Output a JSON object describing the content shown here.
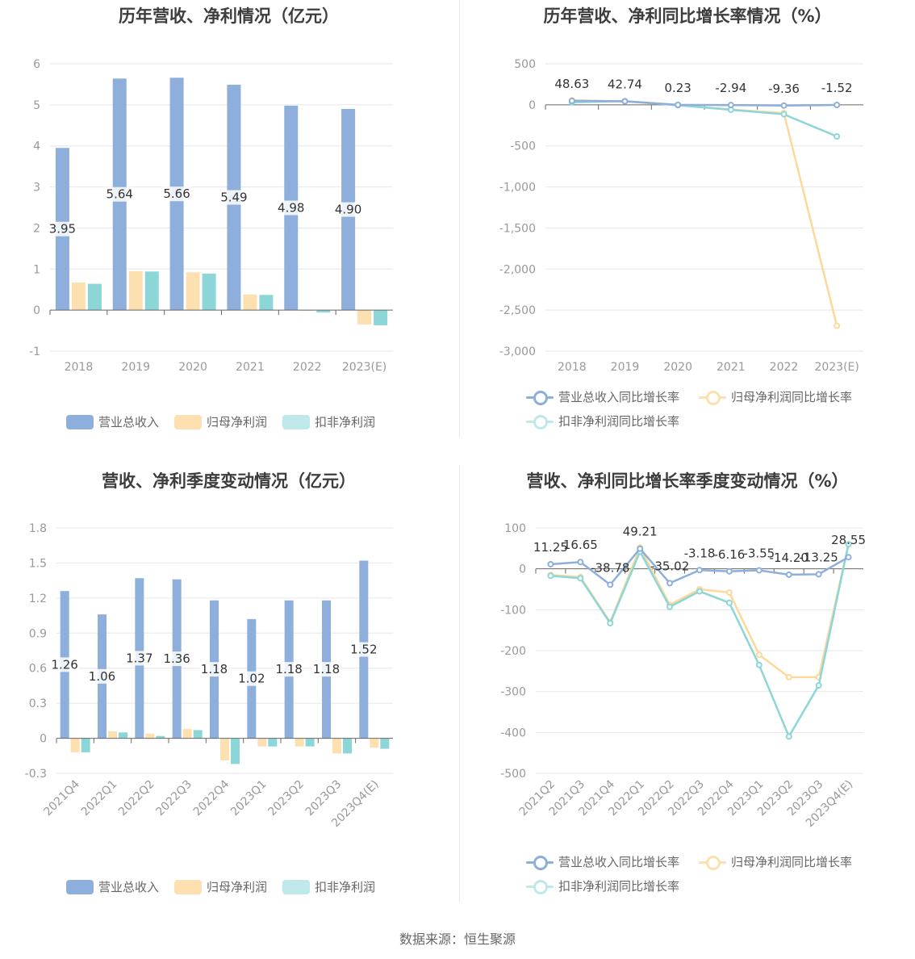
{
  "source_text": "数据来源：恒生聚源",
  "colors": {
    "revenue": "#8eaedc",
    "net": "#fde0b0",
    "deduct": "#8dd6d8",
    "grid": "#e6e6ee",
    "axis": "#666666",
    "text": "#999999"
  },
  "charts": [
    {
      "title": "历年营收、净利情况（亿元）",
      "legend": [
        "营业总收入",
        "归母净利润",
        "扣非净利润"
      ]
    },
    {
      "title": "历年营收、净利同比增长率情况（%）",
      "legend": [
        "营业总收入同比增长率",
        "归母净利润同比增长率",
        "扣非净利润同比增长率"
      ]
    },
    {
      "title": "营收、净利季度变动情况（亿元）",
      "legend": [
        "营业总收入",
        "归母净利润",
        "扣非净利润"
      ]
    },
    {
      "title": "营收、净利同比增长率季度变动情况（%）",
      "legend": [
        "营业总收入同比增长率",
        "归母净利润同比增长率",
        "扣非净利润同比增长率"
      ]
    }
  ],
  "chart_data": [
    {
      "type": "bar",
      "title": "历年营收、净利情况（亿元）",
      "categories": [
        "2018",
        "2019",
        "2020",
        "2021",
        "2022",
        "2023(E)"
      ],
      "ylim": [
        -1,
        6
      ],
      "yticks": [
        -1,
        0,
        1,
        2,
        3,
        4,
        5,
        6
      ],
      "series": [
        {
          "name": "营业总收入",
          "values": [
            3.95,
            5.64,
            5.66,
            5.49,
            4.98,
            4.9
          ],
          "labels": [
            "3.95",
            "5.64",
            "5.66",
            "5.49",
            "4.98",
            "4.90"
          ]
        },
        {
          "name": "归母净利润",
          "values": [
            0.67,
            0.95,
            0.92,
            0.38,
            0.0,
            -0.35
          ]
        },
        {
          "name": "扣非净利润",
          "values": [
            0.64,
            0.94,
            0.89,
            0.37,
            -0.06,
            -0.37
          ]
        }
      ],
      "legend_position": "bottom",
      "grid": true
    },
    {
      "type": "line",
      "title": "历年营收、净利同比增长率情况（%）",
      "categories": [
        "2018",
        "2019",
        "2020",
        "2021",
        "2022",
        "2023(E)"
      ],
      "ylim": [
        -3000,
        500
      ],
      "yticks": [
        500,
        0,
        -500,
        -1000,
        -1500,
        -2000,
        -2500,
        -3000
      ],
      "ytick_labels": [
        "500",
        "0",
        "-500",
        "-1,000",
        "-1,500",
        "-2,000",
        "-2,500",
        "-3,000"
      ],
      "series": [
        {
          "name": "营业总收入同比增长率",
          "values": [
            48.63,
            42.74,
            0.23,
            -2.94,
            -9.36,
            -1.52
          ],
          "labels": [
            "48.63",
            "42.74",
            "0.23",
            "-2.94",
            "-9.36",
            "-1.52"
          ]
        },
        {
          "name": "归母净利润同比增长率",
          "values": [
            55,
            42,
            -3,
            -58,
            -100,
            -2690
          ]
        },
        {
          "name": "扣非净利润同比增长率",
          "values": [
            30,
            45,
            -5,
            -60,
            -115,
            -385
          ]
        }
      ],
      "legend_position": "bottom",
      "grid": true
    },
    {
      "type": "bar",
      "title": "营收、净利季度变动情况（亿元）",
      "categories": [
        "2021Q4",
        "2022Q1",
        "2022Q2",
        "2022Q3",
        "2022Q4",
        "2023Q1",
        "2023Q2",
        "2023Q3",
        "2023Q4(E)"
      ],
      "ylim": [
        -0.3,
        1.8
      ],
      "yticks": [
        -0.3,
        0,
        0.3,
        0.6,
        0.9,
        1.2,
        1.5,
        1.8
      ],
      "series": [
        {
          "name": "营业总收入",
          "values": [
            1.26,
            1.06,
            1.37,
            1.36,
            1.18,
            1.02,
            1.18,
            1.18,
            1.52
          ],
          "labels": [
            "1.26",
            "1.06",
            "1.37",
            "1.36",
            "1.18",
            "1.02",
            "1.18",
            "1.18",
            "1.52"
          ]
        },
        {
          "name": "归母净利润",
          "values": [
            -0.12,
            0.06,
            0.04,
            0.08,
            -0.19,
            -0.07,
            -0.07,
            -0.13,
            -0.08
          ]
        },
        {
          "name": "扣非净利润",
          "values": [
            -0.12,
            0.05,
            0.02,
            0.07,
            -0.22,
            -0.07,
            -0.07,
            -0.13,
            -0.09
          ]
        }
      ],
      "legend_position": "bottom",
      "grid": true
    },
    {
      "type": "line",
      "title": "营收、净利同比增长率季度变动情况（%）",
      "categories": [
        "2021Q2",
        "2021Q3",
        "2021Q4",
        "2022Q1",
        "2022Q2",
        "2022Q3",
        "2022Q4",
        "2023Q1",
        "2023Q2",
        "2023Q3",
        "2023Q4(E)"
      ],
      "ylim": [
        -500,
        100
      ],
      "yticks": [
        100,
        0,
        -100,
        -200,
        -300,
        -400,
        -500
      ],
      "series": [
        {
          "name": "营业总收入同比增长率",
          "values": [
            11.25,
            16.65,
            -38.78,
            49.21,
            -35.02,
            -3.18,
            -6.16,
            -3.55,
            -14.2,
            -13.25,
            28.55
          ],
          "labels": [
            "11.25",
            "16.65",
            "-38.78",
            "49.21",
            "-35.02",
            "-3.18",
            "-6.16",
            "-3.55",
            "-14.20",
            "-13.25",
            "28.55"
          ]
        },
        {
          "name": "归母净利润同比增长率",
          "values": [
            -15,
            -20,
            -130,
            52,
            -88,
            -50,
            -58,
            -210,
            -265,
            -265,
            60
          ]
        },
        {
          "name": "扣非净利润同比增长率",
          "values": [
            -17,
            -23,
            -133,
            42,
            -93,
            -55,
            -83,
            -235,
            -410,
            -285,
            60
          ]
        }
      ],
      "legend_position": "bottom",
      "grid": true
    }
  ]
}
